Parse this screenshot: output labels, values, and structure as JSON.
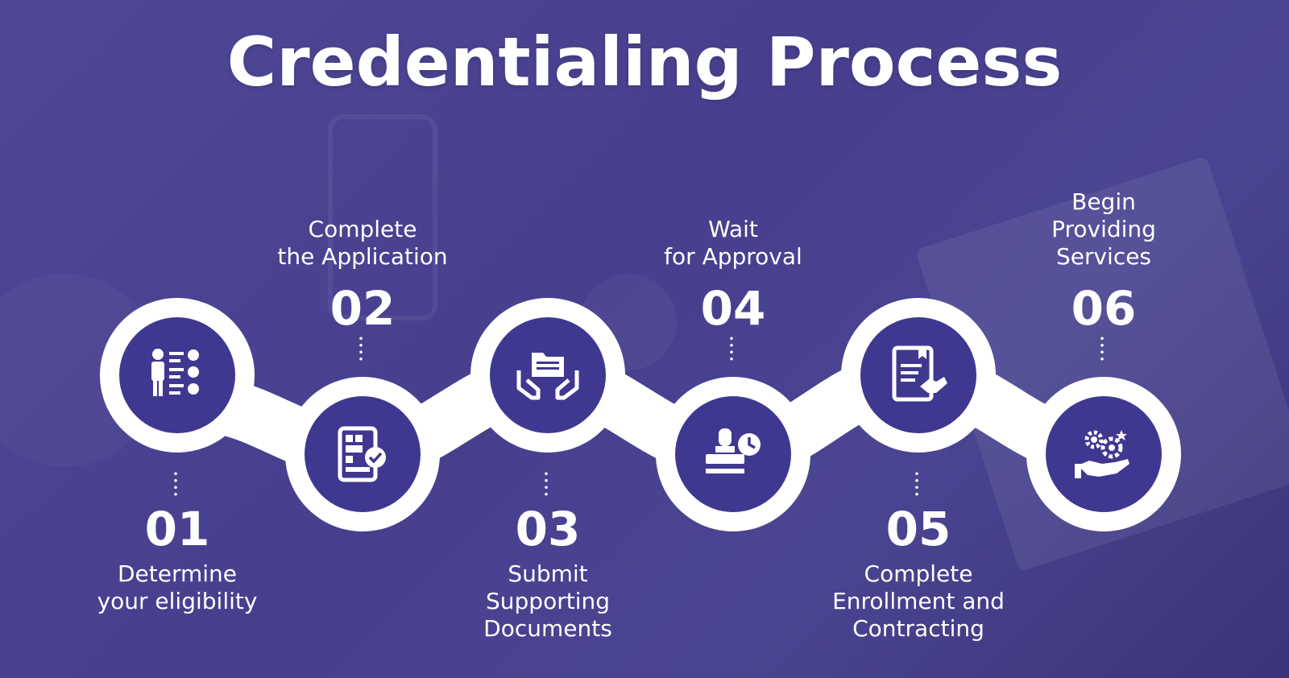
{
  "title": "Credentialing Process",
  "steps": [
    {
      "number": "01",
      "label": "Determine\nyour eligibility",
      "icon": "person-checklist-icon"
    },
    {
      "number": "02",
      "label": "Complete\nthe Application",
      "icon": "application-form-check-icon"
    },
    {
      "number": "03",
      "label": "Submit\nSupporting\nDocuments",
      "icon": "folder-hands-icon"
    },
    {
      "number": "04",
      "label": "Wait\nfor Approval",
      "icon": "stamp-clock-icon"
    },
    {
      "number": "05",
      "label": "Complete\nEnrollment and\nContracting",
      "icon": "contract-handshake-icon"
    },
    {
      "number": "06",
      "label": "Begin\nProviding\nServices",
      "icon": "gears-hand-icon"
    }
  ],
  "colors": {
    "background": "#4a4392",
    "node": "#3f3891",
    "ring": "#ffffff",
    "text": "#ffffff"
  }
}
